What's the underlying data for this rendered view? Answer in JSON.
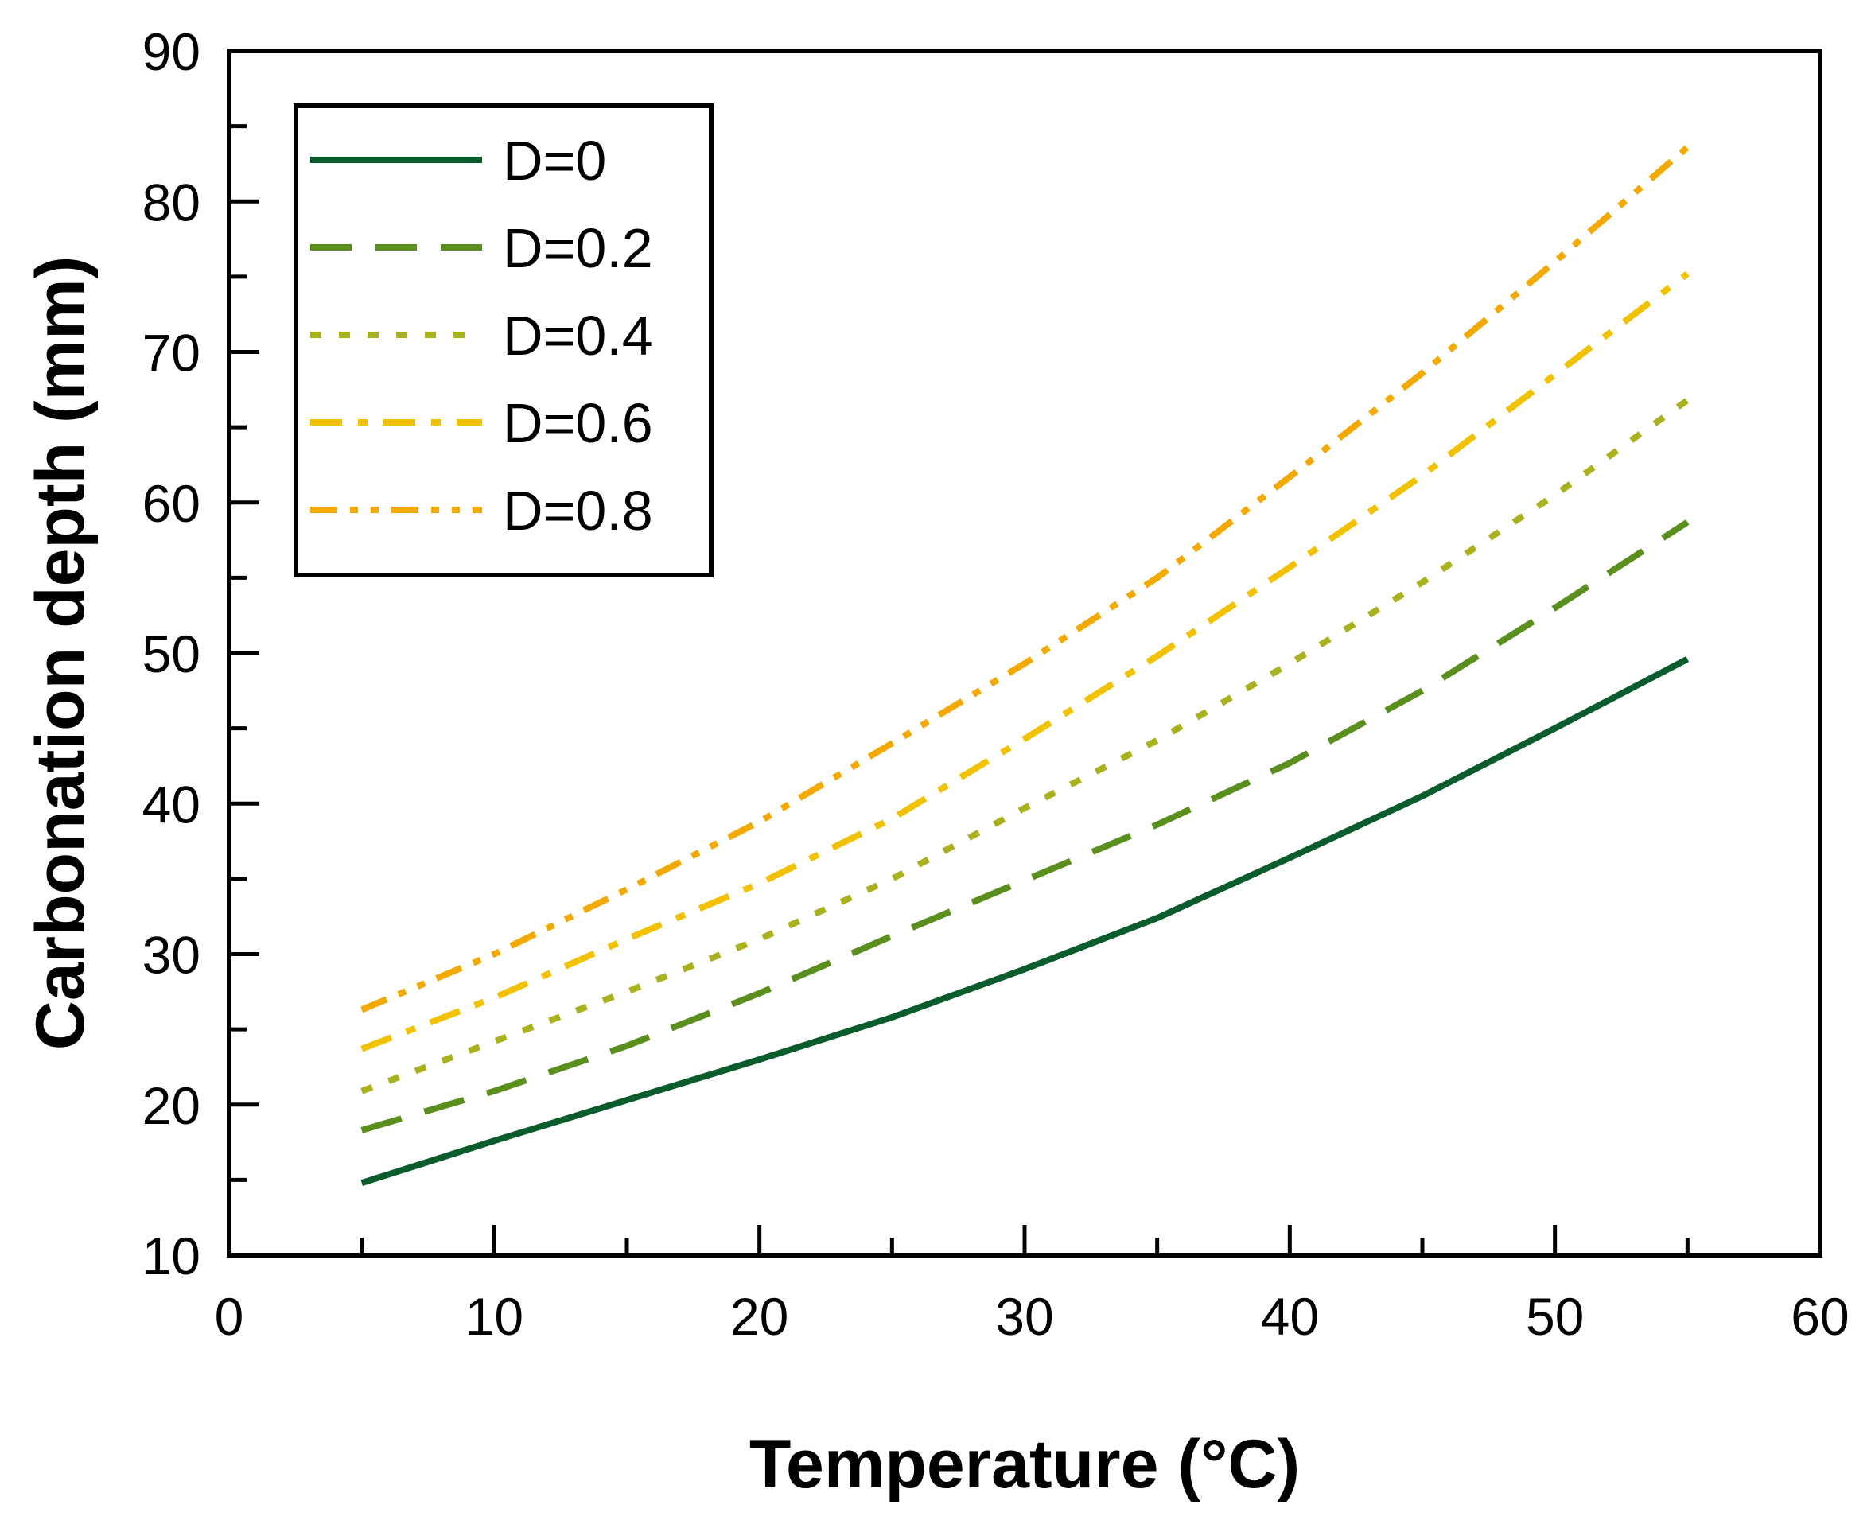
{
  "chart_data": {
    "type": "line",
    "title": "",
    "xlabel": "Temperature (°C)",
    "ylabel": "Carbonation depth (mm)",
    "xlim": [
      0,
      60
    ],
    "ylim": [
      10,
      90
    ],
    "xticks": [
      0,
      10,
      20,
      30,
      40,
      50,
      60
    ],
    "yticks": [
      10,
      20,
      30,
      40,
      50,
      60,
      70,
      80,
      90
    ],
    "grid": false,
    "legend_position": "top-left",
    "x": [
      5,
      10,
      15,
      20,
      25,
      30,
      35,
      40,
      45,
      50,
      55
    ],
    "series": [
      {
        "name": "D=0",
        "color": "#0B5C2C",
        "dash": "solid",
        "values": [
          14.8,
          17.6,
          20.3,
          23.0,
          25.8,
          29.0,
          32.4,
          36.4,
          40.5,
          45.0,
          49.6
        ]
      },
      {
        "name": "D=0.2",
        "color": "#5A8F1E",
        "dash": "dash",
        "values": [
          18.3,
          20.9,
          23.9,
          27.4,
          31.2,
          34.9,
          38.6,
          42.7,
          47.5,
          53.0,
          58.7
        ]
      },
      {
        "name": "D=0.4",
        "color": "#A9B21E",
        "dash": "dot",
        "values": [
          20.9,
          24.2,
          27.5,
          31.0,
          35.0,
          39.7,
          44.2,
          49.3,
          54.7,
          60.5,
          66.8
        ]
      },
      {
        "name": "D=0.6",
        "color": "#F2C200",
        "dash": "dashdot",
        "values": [
          23.7,
          27.1,
          31.0,
          34.7,
          39.0,
          44.3,
          49.8,
          55.7,
          61.8,
          68.5,
          75.2
        ]
      },
      {
        "name": "D=0.8",
        "color": "#F4A900",
        "dash": "dashdotdot",
        "values": [
          26.3,
          30.0,
          34.3,
          38.8,
          44.0,
          49.3,
          55.0,
          61.7,
          68.6,
          76.0,
          83.6
        ]
      }
    ]
  }
}
